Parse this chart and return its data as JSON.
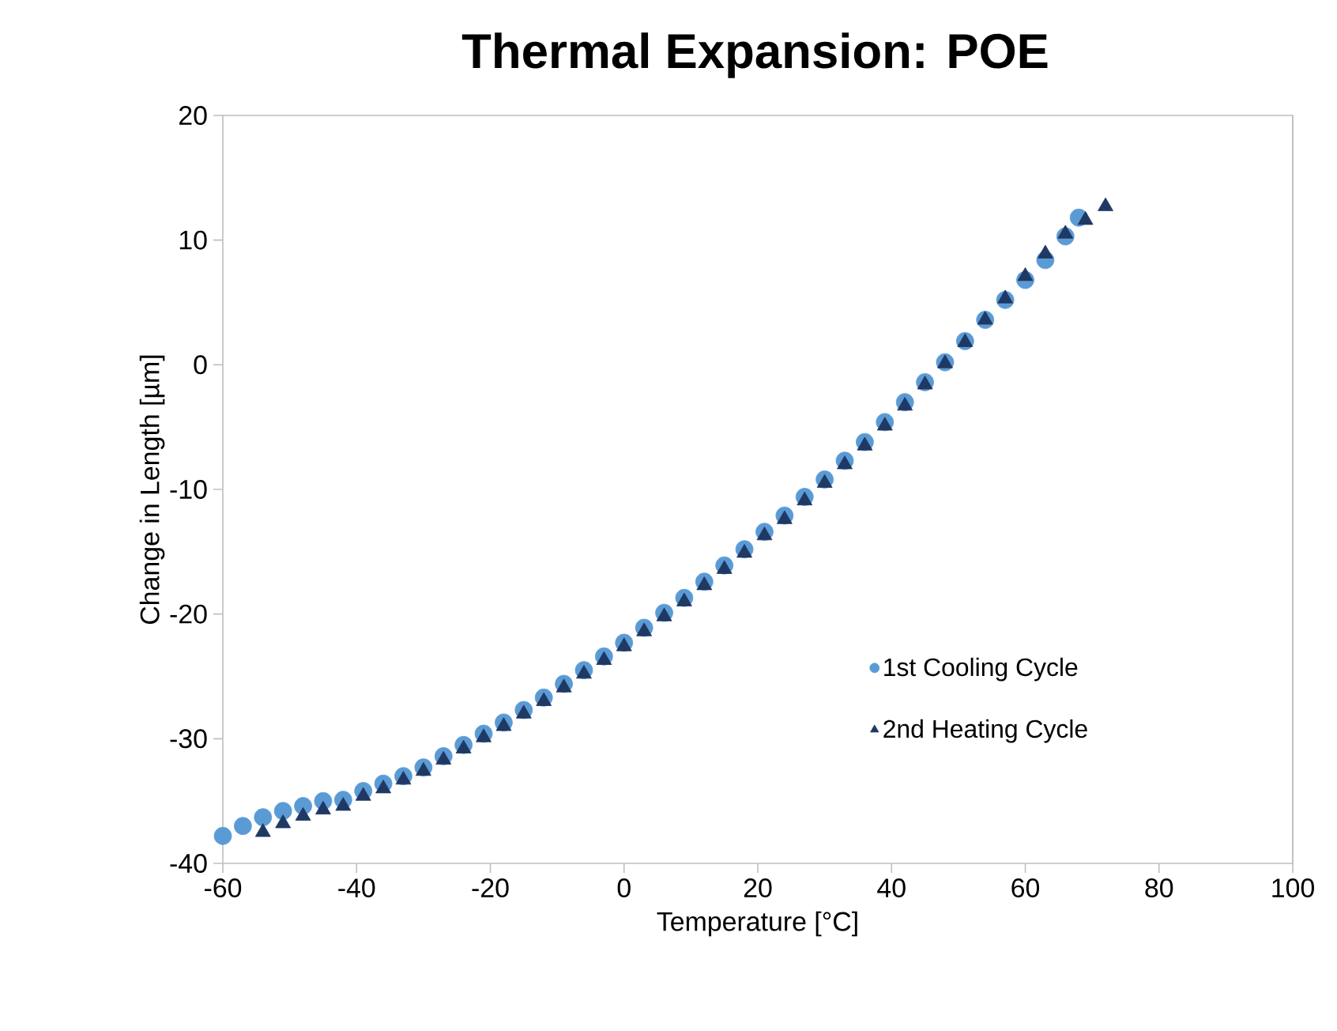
{
  "chart_data": {
    "type": "scatter",
    "title": "Thermal Expansion: POE",
    "xlabel": "Temperature [°C]",
    "ylabel": "Change in Length [µm]",
    "xlim": [
      -60,
      100
    ],
    "xticks": [
      -60,
      -40,
      -20,
      0,
      20,
      40,
      60,
      80,
      100
    ],
    "ylim": [
      -40,
      20
    ],
    "yticks": [
      -40,
      -30,
      -20,
      -10,
      0,
      10,
      20
    ],
    "grid": false,
    "legend": "right",
    "series": [
      {
        "name": "1st Cooling Cycle",
        "color": "#5b9bd5",
        "marker": "circle",
        "x": [
          -60,
          -57,
          -54,
          -51,
          -48,
          -45,
          -42,
          -39,
          -36,
          -33,
          -30,
          -27,
          -24,
          -21,
          -18,
          -15,
          -12,
          -9,
          -6,
          -3,
          0,
          3,
          6,
          9,
          12,
          15,
          18,
          21,
          24,
          27,
          30,
          33,
          36,
          39,
          42,
          45,
          48,
          51,
          54,
          57,
          60,
          63,
          66,
          68
        ],
        "values": [
          -37.8,
          -37.0,
          -36.3,
          -35.8,
          -35.4,
          -35.0,
          -34.9,
          -34.2,
          -33.6,
          -33.0,
          -32.3,
          -31.4,
          -30.5,
          -29.6,
          -28.7,
          -27.7,
          -26.7,
          -25.6,
          -24.5,
          -23.4,
          -22.3,
          -21.1,
          -19.9,
          -18.7,
          -17.4,
          -16.1,
          -14.8,
          -13.4,
          -12.1,
          -10.6,
          -9.2,
          -7.7,
          -6.2,
          -4.6,
          -3.0,
          -1.4,
          0.2,
          1.9,
          3.6,
          5.2,
          6.8,
          8.4,
          10.3,
          11.8
        ]
      },
      {
        "name": "2nd Heating Cycle",
        "color": "#1f3864",
        "marker": "triangle",
        "x": [
          -54,
          -51,
          -48,
          -45,
          -42,
          -39,
          -36,
          -33,
          -30,
          -27,
          -24,
          -21,
          -18,
          -15,
          -12,
          -9,
          -6,
          -3,
          0,
          3,
          6,
          9,
          12,
          15,
          18,
          21,
          24,
          27,
          30,
          33,
          36,
          39,
          42,
          45,
          48,
          51,
          54,
          57,
          60,
          63,
          66,
          69,
          72
        ],
        "values": [
          -37.5,
          -36.8,
          -36.2,
          -35.7,
          -35.4,
          -34.6,
          -34.0,
          -33.3,
          -32.6,
          -31.7,
          -30.8,
          -29.9,
          -29.0,
          -28.0,
          -27.0,
          -25.9,
          -24.8,
          -23.7,
          -22.6,
          -21.4,
          -20.2,
          -19.0,
          -17.7,
          -16.4,
          -15.1,
          -13.7,
          -12.4,
          -10.9,
          -9.5,
          -8.0,
          -6.5,
          -4.9,
          -3.3,
          -1.6,
          0.1,
          1.8,
          3.6,
          5.3,
          7.1,
          8.9,
          10.5,
          11.6,
          12.7
        ]
      }
    ]
  }
}
